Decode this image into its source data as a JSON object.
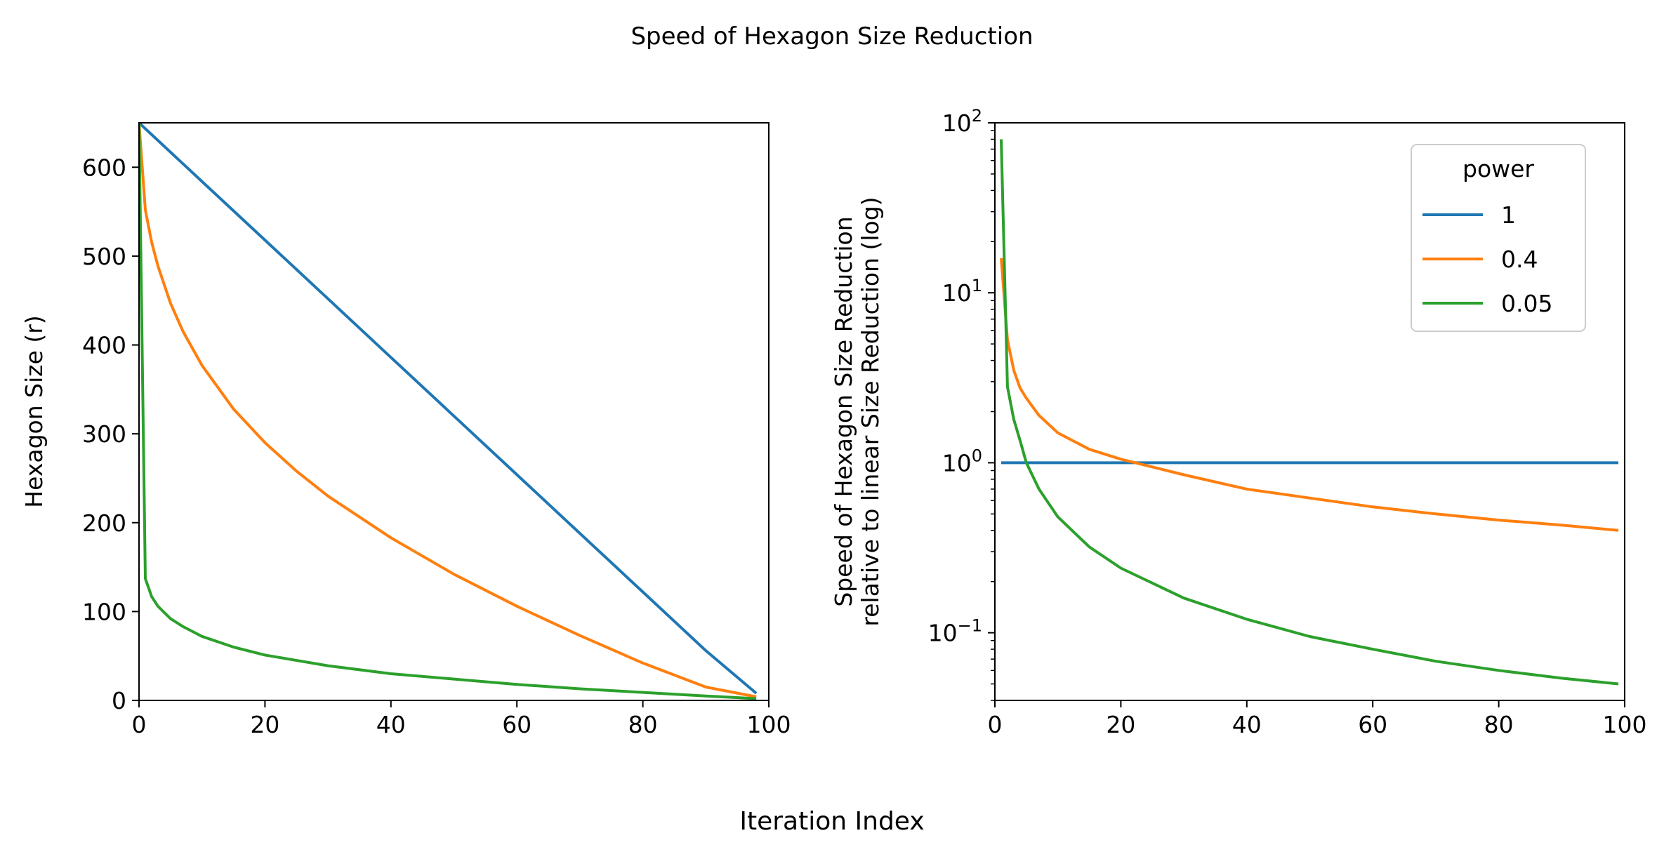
{
  "figure": {
    "title": "Speed of Hexagon Size Reduction",
    "xlabel": "Iteration Index"
  },
  "chart_data": [
    {
      "type": "line",
      "ylabel": "Hexagon Size (r)",
      "xlim": [
        0,
        100
      ],
      "ylim": [
        0,
        650
      ],
      "yscale": "linear",
      "grid": false,
      "xticks": [
        0,
        20,
        40,
        60,
        80,
        100
      ],
      "xtick_labels": [
        "0",
        "20",
        "40",
        "60",
        "80",
        "100"
      ],
      "yticks": [
        0,
        100,
        200,
        300,
        400,
        500,
        600
      ],
      "ytick_labels": [
        "0",
        "100",
        "200",
        "300",
        "400",
        "500",
        "600"
      ],
      "series": [
        {
          "name": "1",
          "color": "#1f77b4",
          "x": [
            0,
            10,
            20,
            30,
            40,
            50,
            60,
            70,
            80,
            90,
            98
          ],
          "y": [
            650,
            584,
            518,
            452,
            386,
            320,
            254,
            188,
            122,
            56,
            8
          ]
        },
        {
          "name": "0.4",
          "color": "#ff7f0e",
          "x": [
            0,
            1,
            2,
            3,
            5,
            7,
            10,
            15,
            20,
            25,
            30,
            40,
            50,
            60,
            70,
            80,
            90,
            98
          ],
          "y": [
            650,
            552,
            516,
            489,
            447,
            415,
            377,
            328,
            290,
            258,
            230,
            183,
            142,
            106,
            73,
            42,
            15,
            4
          ]
        },
        {
          "name": "0.05",
          "color": "#2ca02c",
          "x": [
            0,
            1,
            2,
            3,
            5,
            7,
            10,
            15,
            20,
            30,
            40,
            50,
            60,
            70,
            80,
            90,
            98
          ],
          "y": [
            650,
            137,
            117,
            106,
            92,
            83,
            72,
            60,
            51,
            39,
            30,
            24,
            18,
            13,
            9,
            5,
            2
          ]
        }
      ]
    },
    {
      "type": "line",
      "ylabel": "Speed of Hexagon Size Reduction\nrelative to linear Size Reduction (log)",
      "xlim": [
        0,
        100
      ],
      "ylim": [
        0.04,
        100
      ],
      "yscale": "log",
      "grid": false,
      "xticks": [
        0,
        20,
        40,
        60,
        80,
        100
      ],
      "xtick_labels": [
        "0",
        "20",
        "40",
        "60",
        "80",
        "100"
      ],
      "yticks": [
        0.1,
        1,
        10,
        100
      ],
      "ytick_labels": [
        {
          "base": "10",
          "exp": "−1"
        },
        {
          "base": "10",
          "exp": "0"
        },
        {
          "base": "10",
          "exp": "1"
        },
        {
          "base": "10",
          "exp": "2"
        }
      ],
      "legend": {
        "title": "power",
        "placement": "top-right"
      },
      "series": [
        {
          "name": "1",
          "color": "#1f77b4",
          "x": [
            1,
            99
          ],
          "y": [
            1,
            1
          ]
        },
        {
          "name": "0.4",
          "color": "#ff7f0e",
          "x": [
            1,
            2,
            3,
            4,
            5,
            7,
            10,
            15,
            20,
            30,
            40,
            50,
            60,
            70,
            80,
            90,
            99
          ],
          "y": [
            16,
            5.3,
            3.5,
            2.75,
            2.4,
            1.9,
            1.5,
            1.2,
            1.05,
            0.85,
            0.7,
            0.62,
            0.55,
            0.5,
            0.46,
            0.43,
            0.4
          ]
        },
        {
          "name": "0.05",
          "color": "#2ca02c",
          "x": [
            1,
            2,
            3,
            4,
            5,
            7,
            10,
            15,
            20,
            30,
            40,
            50,
            60,
            70,
            80,
            90,
            99
          ],
          "y": [
            80,
            2.8,
            1.8,
            1.35,
            1.0,
            0.7,
            0.48,
            0.32,
            0.24,
            0.16,
            0.12,
            0.095,
            0.08,
            0.068,
            0.06,
            0.054,
            0.05
          ]
        }
      ]
    }
  ]
}
